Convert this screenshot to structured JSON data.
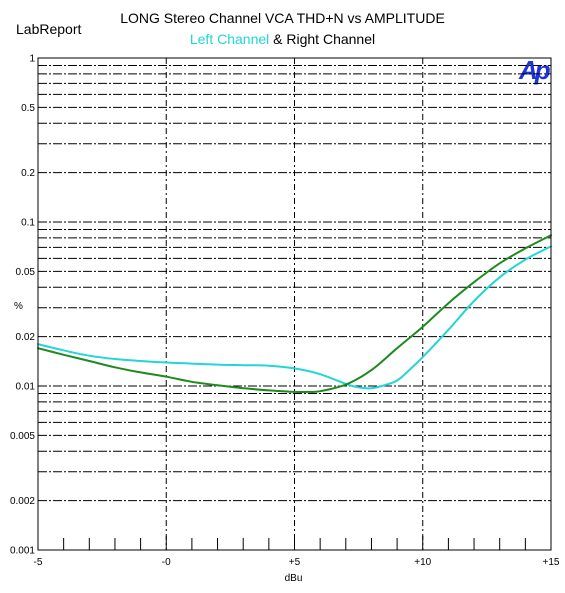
{
  "header": {
    "brand": "LabReport",
    "title": "LONG Stereo Channel VCA THD+N vs AMPLITUDE",
    "left_label": "Left Channel",
    "separator": " & ",
    "right_label": "Right Channel",
    "logo": "Ap"
  },
  "colors": {
    "left": "#22d6d6",
    "right": "#1f8a1f",
    "logo": "#1d33e0",
    "grid": "#000000"
  },
  "chart_data": {
    "type": "line",
    "title": "LONG Stereo Channel VCA THD+N vs AMPLITUDE",
    "xlabel": "dBu",
    "ylabel": "%",
    "xlim": [
      -5,
      15
    ],
    "ylim": [
      0.001,
      1
    ],
    "y_scale": "log",
    "grid": true,
    "x_ticks": [
      -5,
      0,
      5,
      10,
      15
    ],
    "x_tick_labels": [
      "-5",
      "-0",
      "+5",
      "+10",
      "+15"
    ],
    "y_ticks": [
      1,
      0.5,
      0.2,
      0.1,
      0.05,
      0.02,
      0.01,
      0.005,
      0.002,
      0.001
    ],
    "y_tick_labels": [
      "1",
      "0.5",
      "0.2",
      "0.1",
      "0.05",
      "0.02",
      "0.01",
      "0.005",
      "0.002",
      "0.001"
    ],
    "series": [
      {
        "name": "Left Channel",
        "color": "#22d6d6",
        "x": [
          -5,
          -4,
          -3,
          -2,
          -1,
          0,
          1,
          2,
          3,
          4,
          5,
          6,
          7,
          7.5,
          8,
          8.5,
          9,
          9.5,
          10,
          11,
          12,
          13,
          14,
          15
        ],
        "y": [
          0.018,
          0.0165,
          0.0153,
          0.0146,
          0.0142,
          0.0139,
          0.0137,
          0.0135,
          0.0134,
          0.0133,
          0.0128,
          0.0118,
          0.0103,
          0.0098,
          0.0097,
          0.0101,
          0.0108,
          0.0126,
          0.015,
          0.022,
          0.033,
          0.046,
          0.059,
          0.071
        ]
      },
      {
        "name": "Right Channel",
        "color": "#1f8a1f",
        "x": [
          -5,
          -4,
          -3,
          -2,
          -1,
          0,
          1,
          2,
          3,
          4,
          5,
          5.5,
          6,
          7,
          8,
          9,
          10,
          11,
          12,
          13,
          14,
          15
        ],
        "y": [
          0.017,
          0.0155,
          0.0142,
          0.013,
          0.0121,
          0.0114,
          0.0106,
          0.0101,
          0.0097,
          0.0094,
          0.0092,
          0.0092,
          0.0093,
          0.0102,
          0.0125,
          0.017,
          0.023,
          0.032,
          0.043,
          0.056,
          0.069,
          0.083
        ]
      }
    ]
  }
}
